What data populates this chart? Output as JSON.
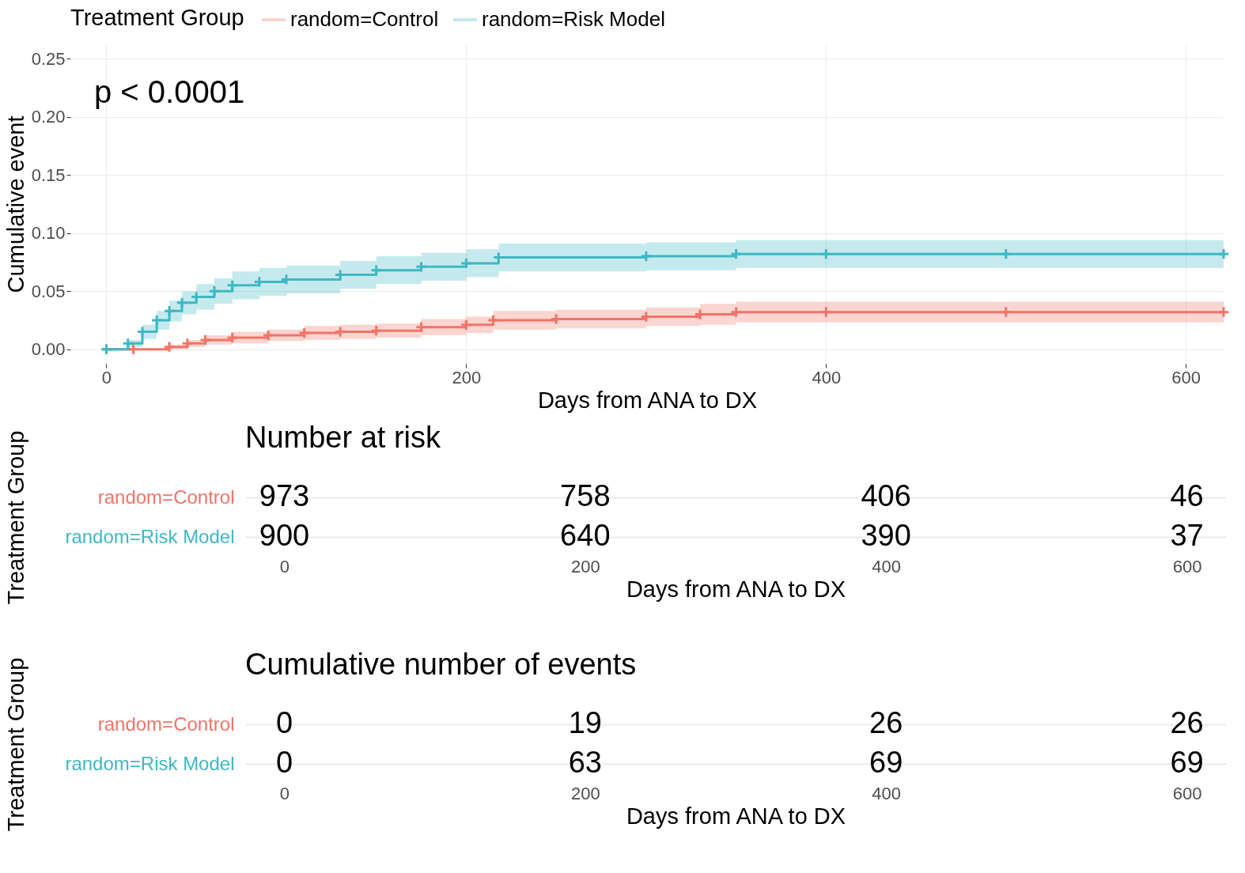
{
  "chart_data": [
    {
      "type": "step",
      "xlabel": "Days from ANA to DX",
      "ylabel": "Cumulative event",
      "legend_title": "Treatment Group",
      "legend": "top",
      "grid": true,
      "marker": "cross",
      "line_style": "solid",
      "xlim": [
        -20,
        621
      ],
      "xticks": [
        0,
        200,
        400,
        600
      ],
      "ylim": [
        -0.0125,
        0.2625
      ],
      "yticks": [
        {
          "value": 0,
          "label": "0.00"
        },
        {
          "value": 0.05,
          "label": "0.05"
        },
        {
          "value": 0.1,
          "label": "0.10"
        },
        {
          "value": 0.15,
          "label": "0.15"
        },
        {
          "value": 0.2,
          "label": "0.20"
        },
        {
          "value": 0.25,
          "label": "0.25"
        }
      ],
      "annotations": [
        "p < 0.0001"
      ],
      "series": [
        {
          "name": "random=Control",
          "color": "#f07468",
          "x": [
            0,
            15,
            35,
            45,
            55,
            70,
            90,
            110,
            130,
            150,
            175,
            200,
            215,
            250,
            300,
            330,
            350,
            400,
            500,
            621
          ],
          "values": [
            0,
            0,
            0.002,
            0.005,
            0.008,
            0.01,
            0.012,
            0.014,
            0.015,
            0.016,
            0.019,
            0.021,
            0.025,
            0.026,
            0.028,
            0.03,
            0.032,
            0.032,
            0.032,
            0.032
          ],
          "lower": [
            0,
            0,
            0,
            0.002,
            0.004,
            0.005,
            0.007,
            0.008,
            0.009,
            0.01,
            0.012,
            0.014,
            0.017,
            0.018,
            0.02,
            0.021,
            0.023,
            0.023,
            0.023,
            0.023
          ],
          "upper": [
            0,
            0,
            0.004,
            0.008,
            0.012,
            0.015,
            0.017,
            0.02,
            0.021,
            0.022,
            0.026,
            0.028,
            0.033,
            0.034,
            0.036,
            0.039,
            0.041,
            0.041,
            0.041,
            0.041
          ]
        },
        {
          "name": "random=Risk Model",
          "color": "#3fb8c3",
          "x": [
            0,
            12,
            20,
            28,
            35,
            42,
            50,
            60,
            70,
            85,
            100,
            130,
            150,
            175,
            200,
            218,
            300,
            350,
            400,
            500,
            621
          ],
          "values": [
            0,
            0.005,
            0.015,
            0.025,
            0.033,
            0.04,
            0.045,
            0.05,
            0.055,
            0.058,
            0.06,
            0.064,
            0.068,
            0.071,
            0.074,
            0.079,
            0.08,
            0.082,
            0.082,
            0.082,
            0.082
          ],
          "lower": [
            0,
            0.002,
            0.009,
            0.017,
            0.024,
            0.03,
            0.034,
            0.039,
            0.043,
            0.046,
            0.048,
            0.052,
            0.056,
            0.059,
            0.062,
            0.067,
            0.068,
            0.07,
            0.07,
            0.07,
            0.07
          ],
          "upper": [
            0,
            0.008,
            0.021,
            0.033,
            0.042,
            0.05,
            0.056,
            0.061,
            0.067,
            0.07,
            0.072,
            0.076,
            0.08,
            0.083,
            0.086,
            0.091,
            0.092,
            0.094,
            0.094,
            0.094,
            0.094
          ]
        }
      ]
    },
    {
      "type": "heatmap",
      "title": "Number at risk",
      "xlabel": "Days from ANA to DX",
      "ylabel": "Treatment Group",
      "data_labels": true,
      "grid": "y",
      "categories": [
        "0",
        "200",
        "400",
        "600"
      ],
      "y_categories": [
        "random=Control",
        "random=Risk Model"
      ],
      "colors": [
        "#f07468",
        "#3fb8c3"
      ],
      "cells": [
        [
          973,
          758,
          406,
          46
        ],
        [
          900,
          640,
          390,
          37
        ]
      ]
    },
    {
      "type": "heatmap",
      "title": "Cumulative number of events",
      "xlabel": "Days from ANA to DX",
      "ylabel": "Treatment Group",
      "data_labels": true,
      "grid": "y",
      "categories": [
        "0",
        "200",
        "400",
        "600"
      ],
      "y_categories": [
        "random=Control",
        "random=Risk Model"
      ],
      "colors": [
        "#f07468",
        "#3fb8c3"
      ],
      "cells": [
        [
          0,
          19,
          26,
          26
        ],
        [
          0,
          63,
          69,
          69
        ]
      ]
    }
  ]
}
